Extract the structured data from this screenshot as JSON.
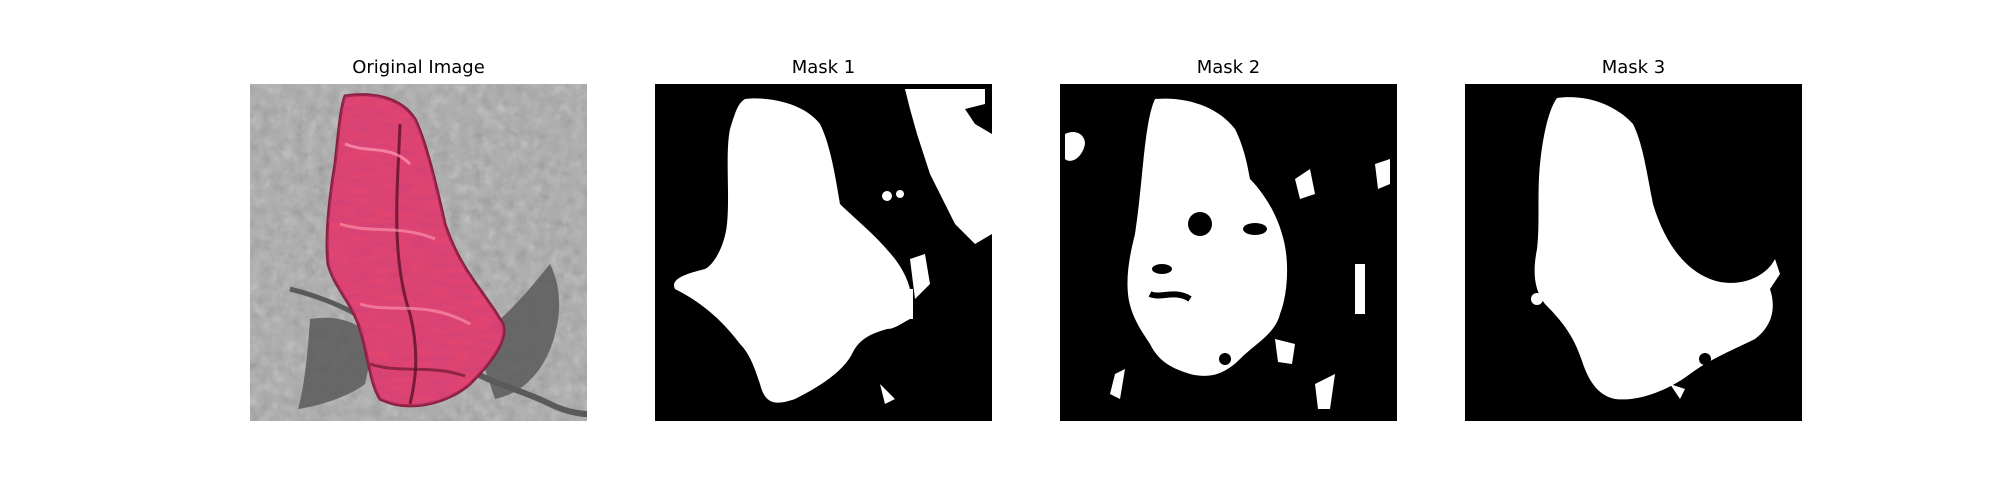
{
  "figure": {
    "panels": [
      {
        "id": "original",
        "title": "Original Image"
      },
      {
        "id": "mask1",
        "title": "Mask 1"
      },
      {
        "id": "mask2",
        "title": "Mask 2"
      },
      {
        "id": "mask3",
        "title": "Mask 3"
      }
    ],
    "colors": {
      "background": "#ffffff",
      "mask_fg": "#ffffff",
      "mask_bg": "#000000",
      "object_pink": "#e8456e",
      "object_dark": "#8a1c3c",
      "texture_gray": "#a9a9a9",
      "shadow_gray": "#5a5a5a"
    }
  }
}
